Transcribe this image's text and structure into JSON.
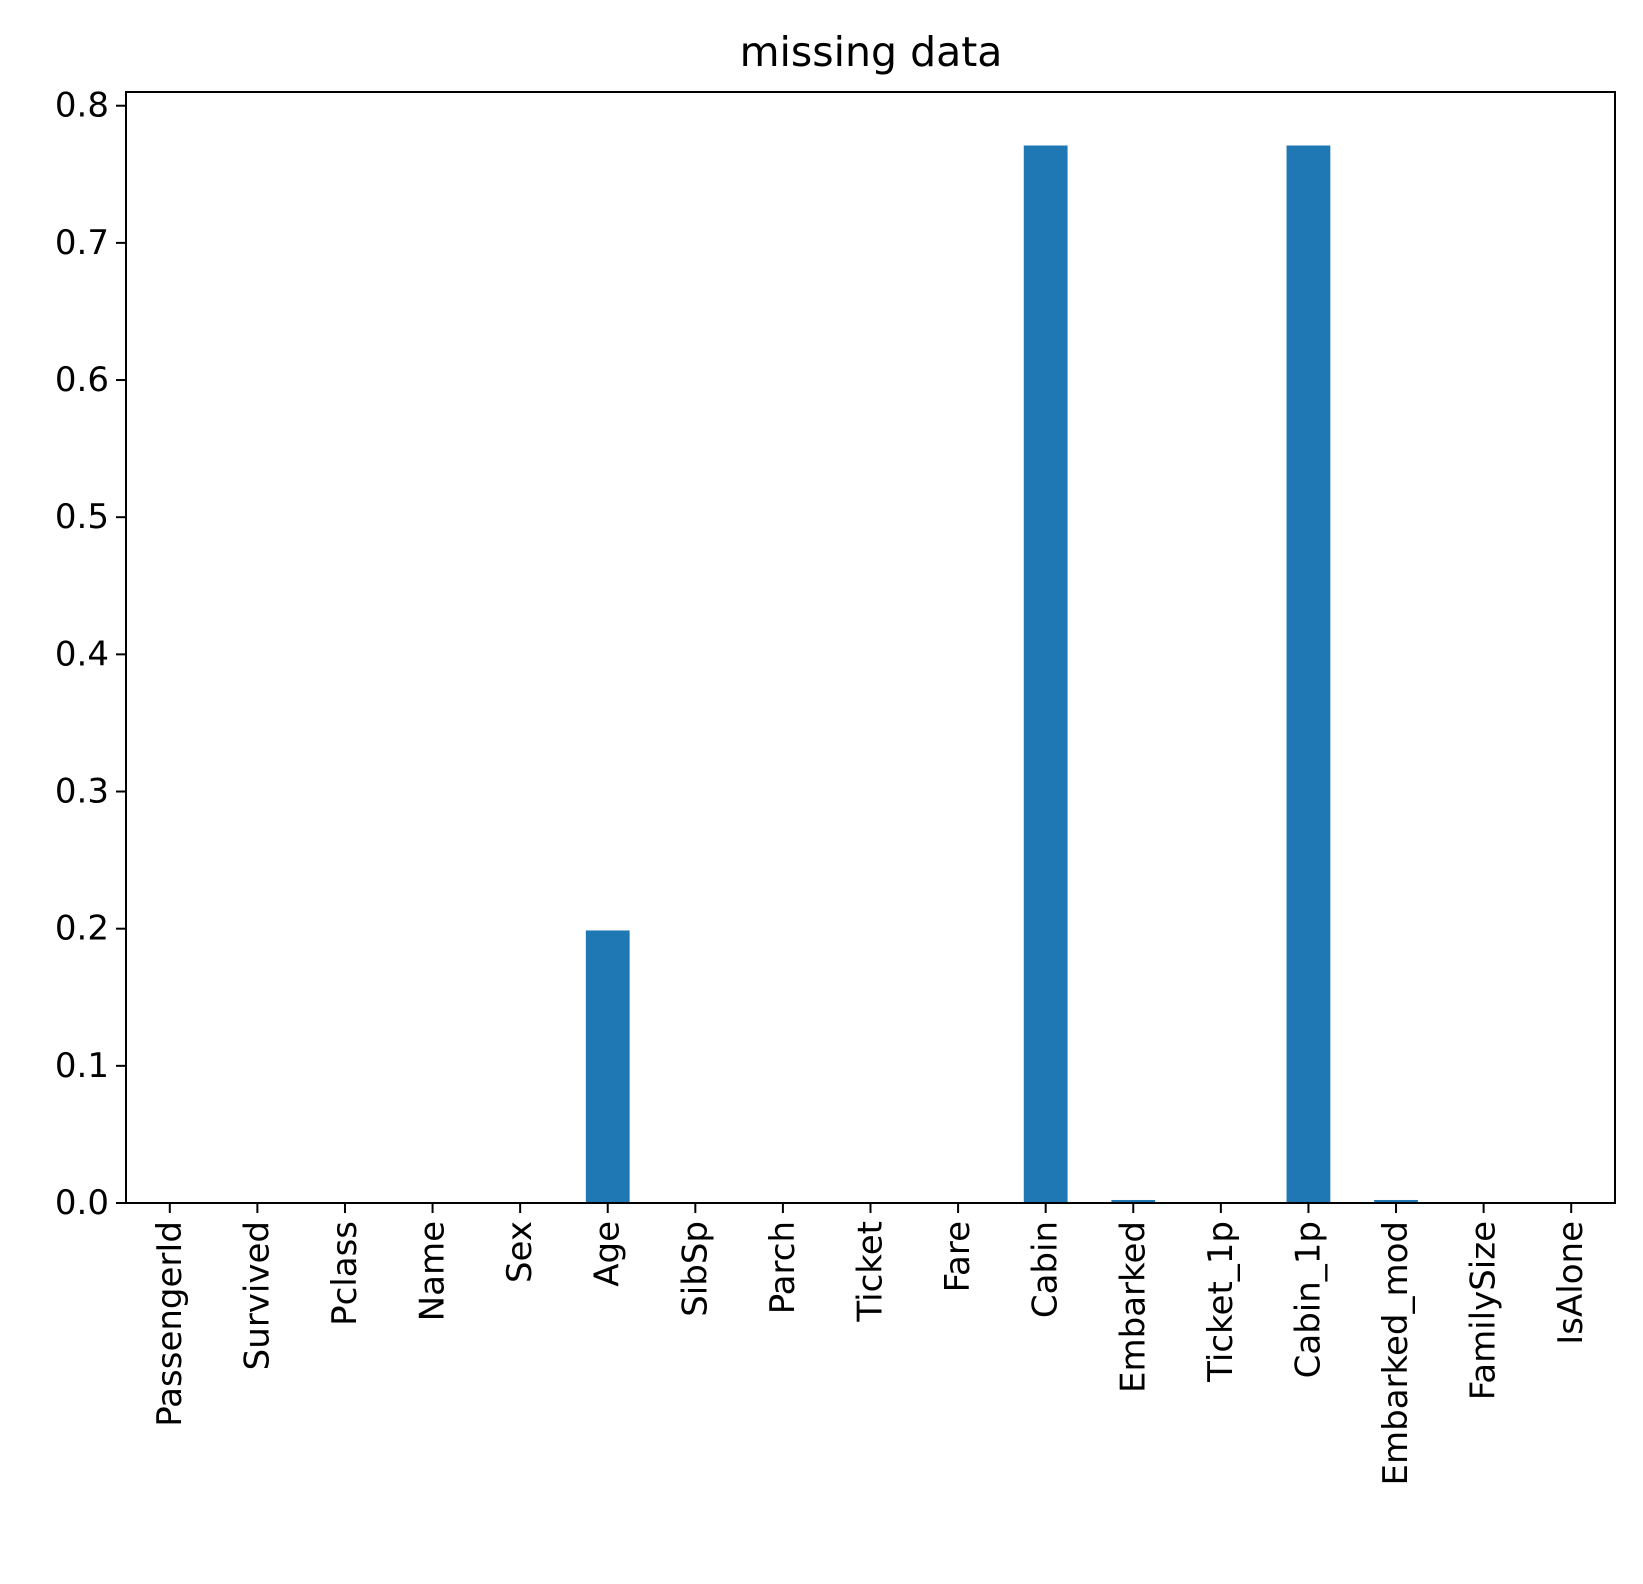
{
  "chart_data": {
    "type": "bar",
    "title": "missing data",
    "xlabel": "",
    "ylabel": "",
    "categories": [
      "PassengerId",
      "Survived",
      "Pclass",
      "Name",
      "Sex",
      "Age",
      "SibSp",
      "Parch",
      "Ticket",
      "Fare",
      "Cabin",
      "Embarked",
      "Ticket_1p",
      "Cabin_1p",
      "Embarked_mod",
      "FamilySize",
      "IsAlone"
    ],
    "values": [
      0,
      0,
      0,
      0,
      0,
      0.1987,
      0,
      0,
      0,
      0,
      0.771,
      0.0022,
      0,
      0.771,
      0.0022,
      0,
      0
    ],
    "ylim": [
      0,
      0.81
    ],
    "yticks": [
      "0.0",
      "0.1",
      "0.2",
      "0.3",
      "0.4",
      "0.5",
      "0.6",
      "0.7",
      "0.8"
    ],
    "grid": false,
    "legend": "none",
    "bar_color": "#1f77b4"
  }
}
